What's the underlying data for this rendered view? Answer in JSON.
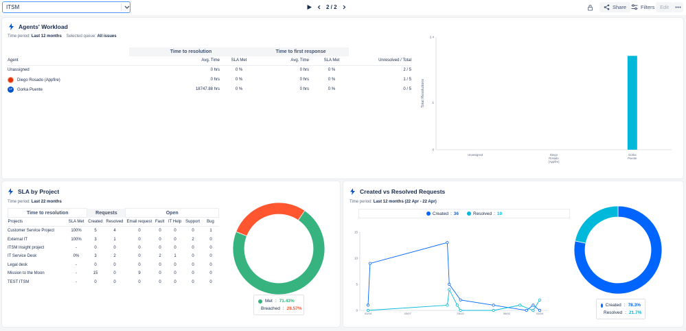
{
  "topbar": {
    "select_value": "ITSM",
    "pages": "2 / 2",
    "share_label": "Share",
    "filters_label": "Filters",
    "edit_label": "Edit"
  },
  "workload": {
    "title": "Agents' Workload",
    "period_label": "Time period:",
    "period_value": "Last 12 months",
    "queue_label": "Selected queue:",
    "queue_value": "All issues",
    "groups": [
      "Time to resolution",
      "Time to first response"
    ],
    "headers": [
      "Agent",
      "Avg. Time",
      "SLA Met",
      "Avg. Time",
      "SLA Met",
      "Unresolved / Total"
    ],
    "rows": [
      {
        "agent": "Unassigned",
        "avg1": "0 hrs",
        "sla1": "0 %",
        "avg2": "0 hrs",
        "sla2": "0 %",
        "ut": "2 / 5"
      },
      {
        "agent": "Diego Rosado (Appfire)",
        "avg1": "0 hrs",
        "sla1": "0 %",
        "avg2": "0 hrs",
        "sla2": "0 %",
        "ut": "1 / 5"
      },
      {
        "agent": "Gorka Puente",
        "avg1": "18747.88 hrs",
        "sla1": "0 %",
        "avg2": "0 hrs",
        "sla2": "0 %",
        "ut": "0 / 5"
      }
    ],
    "avatar_initials": "GP"
  },
  "chart_data": [
    {
      "type": "bar",
      "ylabel": "Total Resolutions",
      "categories": [
        "Unassigned",
        "Diego Rosado (Appfire)",
        "Gorka Puente"
      ],
      "category_lines": [
        [
          "Unassigned"
        ],
        [
          "Diego",
          "Rosado",
          "(Appfire)"
        ],
        [
          "Gorka",
          "Puente"
        ]
      ],
      "values": [
        0,
        0,
        2
      ],
      "ylim": [
        0,
        2.4
      ],
      "yticks": [
        "0",
        "1",
        "2.4"
      ],
      "data_labels": [
        "",
        "",
        "2"
      ],
      "color": "#00b8d9"
    },
    {
      "type": "pie",
      "labels": [
        "Met",
        "Breached"
      ],
      "values": [
        71.43,
        28.57
      ],
      "value_labels": [
        "71.43%",
        "28.57%"
      ],
      "colors": [
        "#36b37e",
        "#ff5630"
      ]
    },
    {
      "type": "line",
      "series": [
        {
          "name": "Created",
          "total": "36",
          "color": "#0065ff",
          "points": [
            [
              0,
              1
            ],
            [
              0.3,
              9
            ],
            [
              12,
              13
            ],
            [
              12.3,
              5
            ],
            [
              14,
              2
            ],
            [
              19,
              1
            ],
            [
              24,
              0
            ],
            [
              25,
              1
            ],
            [
              26,
              0
            ]
          ]
        },
        {
          "name": "Resolved",
          "total": "10",
          "color": "#00b8d9",
          "points": [
            [
              0,
              0
            ],
            [
              12,
              1
            ],
            [
              12.3,
              4
            ],
            [
              13.5,
              1
            ],
            [
              14,
              0
            ],
            [
              19,
              0
            ],
            [
              23,
              1
            ],
            [
              25,
              0
            ],
            [
              26,
              2
            ]
          ]
        }
      ],
      "xticks": [
        "01/04",
        "03/07",
        "04/10",
        "06/01",
        "01/04"
      ],
      "yticks": [
        "0",
        "5",
        "10",
        "15"
      ],
      "ylim": [
        0,
        15
      ]
    },
    {
      "type": "pie",
      "labels": [
        "Created",
        "Resolved"
      ],
      "values": [
        78.3,
        21.7
      ],
      "value_labels": [
        "78.3%",
        "21.7%"
      ],
      "colors": [
        "#0065ff",
        "#00b8d9"
      ]
    }
  ],
  "sla": {
    "title": "SLA by Project",
    "period_label": "Time period:",
    "period_value": "Last 22 months",
    "groups": [
      "Time to resolution",
      "Requests",
      "Open"
    ],
    "headers": [
      "Projects",
      "SLA Met",
      "Created",
      "Resolved",
      "Email request",
      "Fault",
      "IT Help",
      "Support",
      "Bug"
    ],
    "rows": [
      [
        "Customer Service Project",
        "100%",
        "5",
        "4",
        "0",
        "0",
        "0",
        "0",
        "1"
      ],
      [
        "External IT",
        "100%",
        "3",
        "1",
        "0",
        "0",
        "0",
        "2",
        "0"
      ],
      [
        "ITSM Insight project",
        "-",
        "0",
        "0",
        "0",
        "0",
        "0",
        "0",
        "0"
      ],
      [
        "IT Service Desk",
        "0%",
        "3",
        "2",
        "0",
        "2",
        "1",
        "0",
        "0"
      ],
      [
        "Legal desk",
        "-",
        "0",
        "0",
        "0",
        "0",
        "0",
        "0",
        "0"
      ],
      [
        "Mission to the Moon",
        "-",
        "15",
        "0",
        "9",
        "0",
        "0",
        "0",
        "0"
      ],
      [
        "TEST ITSM",
        "-",
        "0",
        "0",
        "0",
        "0",
        "0",
        "0",
        "0"
      ]
    ]
  },
  "cvr": {
    "title": "Created vs Resolved Requests",
    "period_label": "Time period:",
    "period_value": "Last 12 months (22 Apr - 22 Apr)"
  }
}
